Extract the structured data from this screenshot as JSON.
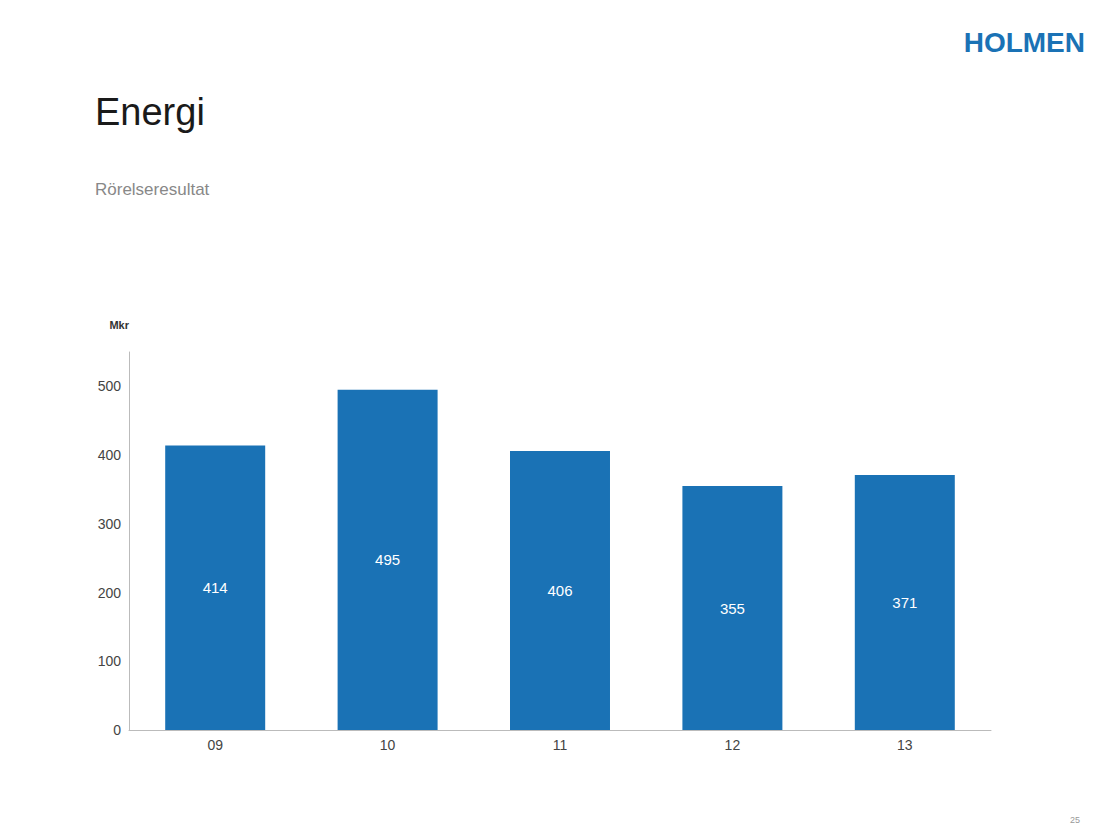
{
  "chart_data": {
    "type": "bar",
    "title": "Energi",
    "subtitle": "Rörelseresultat",
    "ylabel": "Mkr",
    "categories": [
      "09",
      "10",
      "11",
      "12",
      "13"
    ],
    "values": [
      414,
      495,
      406,
      355,
      371
    ],
    "color": "#1A72B5",
    "ylim": [
      0,
      550
    ],
    "yticks": [
      0,
      100,
      200,
      300,
      400,
      500
    ],
    "grid": false,
    "data_labels": true,
    "annotations": [
      "HOLMEN",
      "25"
    ]
  }
}
